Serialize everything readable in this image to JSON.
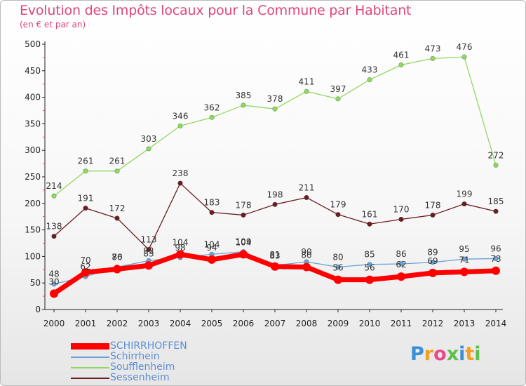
{
  "title": "Evolution des Impôts locaux pour la Commune par Habitant",
  "subtitle": "(en € et par an)",
  "logo_text": "Proxiti",
  "chart_data": {
    "type": "line",
    "x": [
      "2000",
      "2001",
      "2002",
      "2003",
      "2004",
      "2005",
      "2006",
      "2007",
      "2008",
      "2009",
      "2010",
      "2011",
      "2012",
      "2013",
      "2014"
    ],
    "ylim": [
      0,
      500
    ],
    "yticks": [
      0,
      50,
      100,
      150,
      200,
      250,
      300,
      350,
      400,
      450,
      500
    ],
    "grid": false,
    "legend": "bottom-left",
    "series": [
      {
        "name": "SCHIRRHOFFEN",
        "color": "#ff0000",
        "values": [
          30,
          70,
          76,
          83,
          104,
          94,
          104,
          81,
          80,
          56,
          56,
          62,
          69,
          71,
          73
        ]
      },
      {
        "name": "Schirrhein",
        "color": "#6aa2d6",
        "values": [
          48,
          62,
          80,
          92,
          98,
          104,
          109,
          83,
          90,
          80,
          85,
          86,
          89,
          95,
          96
        ]
      },
      {
        "name": "Soufflenheim",
        "color": "#90d860",
        "values": [
          214,
          261,
          261,
          303,
          346,
          362,
          385,
          378,
          411,
          397,
          433,
          461,
          473,
          476,
          272
        ]
      },
      {
        "name": "Sessenheim",
        "color": "#6a1e22",
        "values": [
          138,
          191,
          172,
          113,
          238,
          183,
          178,
          198,
          211,
          179,
          161,
          170,
          178,
          199,
          185
        ]
      }
    ]
  }
}
